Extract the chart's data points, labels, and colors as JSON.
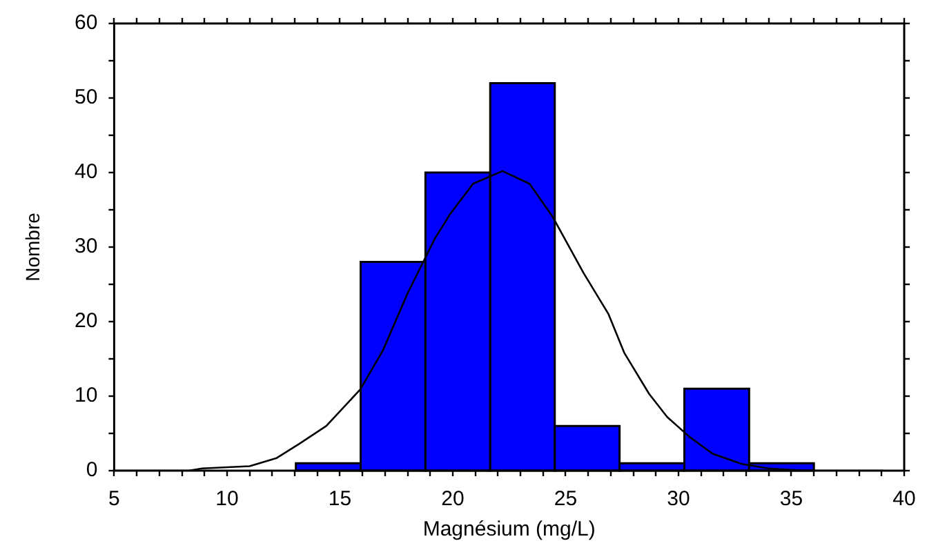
{
  "chart_data": {
    "type": "histogram",
    "xlabel": "Magnésium (mg/L)",
    "ylabel": "Nombre",
    "bins": [
      13.05,
      15.92,
      18.79,
      21.66,
      24.52,
      27.39,
      30.26,
      33.13,
      36.0
    ],
    "values": [
      1,
      28,
      40,
      52,
      6,
      1,
      11,
      1
    ],
    "color": "#0000ff",
    "series": [
      {
        "type": "line",
        "color": "#000000",
        "x": [
          5,
          8.3,
          8.9,
          11.0,
          12.2,
          13.2,
          14.4,
          15.9,
          16.9,
          18.0,
          19.2,
          19.9,
          20.9,
          22.2,
          23.4,
          24.4,
          25.8,
          26.9,
          27.6,
          28.7,
          29.5,
          30.5,
          31.5,
          32.8,
          34.0,
          35.6,
          39.1
        ],
        "values": [
          0,
          0,
          0.3,
          0.6,
          1.7,
          3.6,
          6,
          10.9,
          16.1,
          23.8,
          31.1,
          34.5,
          38.5,
          40.2,
          38.5,
          34.2,
          26.5,
          21,
          15.8,
          10.3,
          7.2,
          4.5,
          2.3,
          0.9,
          0.3,
          0,
          0
        ]
      }
    ],
    "xlim": [
      5,
      40
    ],
    "xticks": [
      5,
      {
        "value": 6,
        "label": null
      },
      {
        "value": 7,
        "label": null
      },
      {
        "value": 8,
        "label": null
      },
      {
        "value": 9,
        "label": null
      },
      10,
      {
        "value": 11,
        "label": null
      },
      {
        "value": 12,
        "label": null
      },
      {
        "value": 13,
        "label": null
      },
      {
        "value": 14,
        "label": null
      },
      15,
      {
        "value": 16,
        "label": null
      },
      {
        "value": 17,
        "label": null
      },
      {
        "value": 18,
        "label": null
      },
      {
        "value": 19,
        "label": null
      },
      20,
      {
        "value": 21,
        "label": null
      },
      {
        "value": 22,
        "label": null
      },
      {
        "value": 23,
        "label": null
      },
      {
        "value": 24,
        "label": null
      },
      25,
      {
        "value": 26,
        "label": null
      },
      {
        "value": 27,
        "label": null
      },
      {
        "value": 28,
        "label": null
      },
      {
        "value": 29,
        "label": null
      },
      30,
      {
        "value": 31,
        "label": null
      },
      {
        "value": 32,
        "label": null
      },
      {
        "value": 33,
        "label": null
      },
      {
        "value": 34,
        "label": null
      },
      35,
      {
        "value": 36,
        "label": null
      },
      {
        "value": 37,
        "label": null
      },
      {
        "value": 38,
        "label": null
      },
      {
        "value": 39,
        "label": null
      },
      40
    ],
    "ylim": [
      0,
      60
    ],
    "yticks": [
      0,
      {
        "value": 5,
        "label": null
      },
      10,
      {
        "value": 15,
        "label": null
      },
      20,
      {
        "value": 25,
        "label": null
      },
      30,
      {
        "value": 35,
        "label": null
      },
      40,
      {
        "value": 45,
        "label": null
      },
      50,
      {
        "value": 55,
        "label": null
      },
      60
    ],
    "grid": false,
    "legend": false,
    "marker": "none",
    "line_style": "solid"
  }
}
